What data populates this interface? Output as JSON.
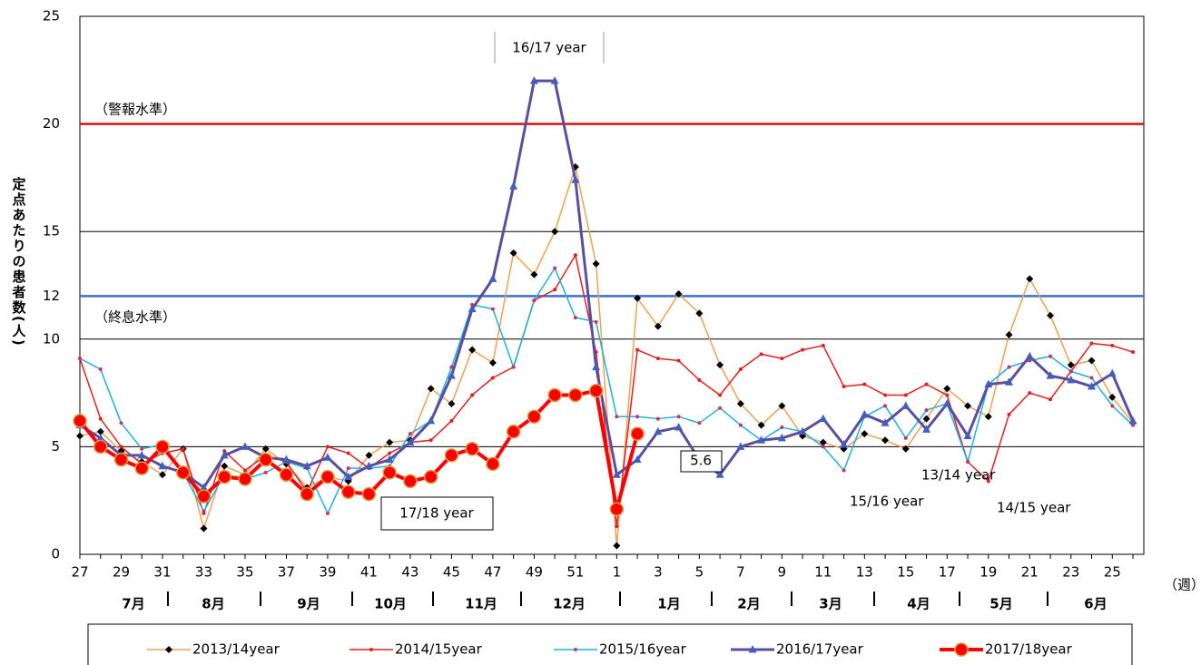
{
  "chart_data": {
    "type": "line",
    "y_axis_label": "定点あたりの患者数(人)",
    "x_axis_unit": "（週）",
    "categories": [
      "27",
      null,
      "29",
      null,
      "31",
      null,
      "33",
      null,
      "35",
      null,
      "37",
      null,
      "39",
      null,
      "41",
      null,
      "43",
      null,
      "45",
      null,
      "47",
      null,
      "49",
      null,
      "51",
      null,
      "1",
      null,
      "3",
      null,
      "5",
      null,
      "7",
      null,
      "9",
      null,
      "11",
      null,
      "13",
      null,
      "15",
      null,
      "17",
      null,
      "19",
      null,
      "21",
      null,
      "23",
      null,
      "25",
      null
    ],
    "month_labels": [
      "7月",
      "8月",
      "9月",
      "10月",
      "11月",
      "12月",
      "1月",
      "2月",
      "3月",
      "4月",
      "5月",
      "6月"
    ],
    "ylim": [
      0,
      25
    ],
    "yticks": [
      0,
      5,
      10,
      12,
      15,
      20,
      25
    ],
    "grid": true,
    "reference_lines": [
      {
        "value": 20,
        "label": "（警報水準）",
        "color": "#e01010"
      },
      {
        "value": 12,
        "label": "（終息水準）",
        "color": "#3a6fd8"
      }
    ],
    "annotations": [
      "16/17 year",
      "17/18 year",
      "5.6",
      "13/14 year",
      "15/16 year",
      "14/15 year"
    ],
    "series": [
      {
        "name": "2013/14year",
        "color": "#f0a050",
        "marker": "diamond",
        "marker_color": "#000000",
        "width": 1.5,
        "values": [
          5.5,
          5.7,
          4.8,
          4.3,
          3.7,
          4.9,
          1.2,
          4.1,
          3.7,
          4.9,
          4.2,
          3.1,
          3.6,
          3.4,
          4.6,
          5.2,
          5.3,
          7.7,
          7.0,
          9.5,
          8.9,
          14.0,
          13.0,
          15.0,
          18.0,
          13.5,
          0.4,
          11.9,
          10.6,
          12.1,
          11.2,
          8.8,
          7.0,
          6.0,
          6.9,
          5.5,
          5.2,
          4.9,
          5.6,
          5.3,
          4.9,
          6.3,
          7.7,
          6.9,
          6.4,
          10.2,
          12.8,
          11.1,
          8.8,
          9.0,
          7.3,
          6.1
        ]
      },
      {
        "name": "2014/15year",
        "color": "#e02020",
        "marker": "dot",
        "marker_color": "#e02020",
        "width": 1.5,
        "values": [
          9.1,
          6.3,
          5.0,
          4.2,
          4.7,
          4.9,
          1.9,
          4.8,
          3.9,
          4.6,
          4.3,
          2.9,
          5.0,
          4.7,
          4.0,
          4.7,
          5.2,
          5.3,
          6.2,
          7.4,
          8.2,
          8.7,
          11.8,
          12.3,
          13.9,
          9.4,
          1.3,
          9.5,
          9.1,
          9.0,
          8.1,
          7.4,
          8.6,
          9.3,
          9.1,
          9.5,
          9.7,
          7.8,
          7.9,
          7.4,
          7.4,
          7.9,
          7.4,
          4.3,
          3.4,
          6.5,
          7.5,
          7.2,
          8.5,
          9.8,
          9.7,
          9.4
        ]
      },
      {
        "name": "2015/16year",
        "color": "#20b0e0",
        "marker": "dot",
        "marker_color": "#d03060",
        "width": 1.5,
        "values": [
          9.1,
          8.6,
          6.1,
          4.9,
          5.1,
          3.8,
          2.0,
          3.7,
          3.5,
          3.8,
          4.3,
          4.0,
          1.9,
          4.0,
          4.0,
          4.1,
          5.6,
          6.2,
          8.7,
          11.6,
          11.4,
          8.7,
          11.8,
          13.3,
          11.0,
          10.8,
          6.4,
          6.4,
          6.3,
          6.4,
          6.1,
          6.8,
          6.0,
          5.3,
          5.9,
          5.7,
          5.0,
          3.9,
          6.4,
          6.9,
          5.4,
          6.7,
          7.0,
          4.3,
          7.9,
          8.7,
          9.0,
          9.2,
          8.5,
          8.2,
          6.9,
          6.0
        ]
      },
      {
        "name": "2016/17year",
        "color": "#5c4e9c",
        "marker": "triangle",
        "marker_color": "#4060c0",
        "width": 3,
        "values": [
          6.0,
          5.4,
          4.6,
          4.6,
          4.1,
          3.8,
          3.1,
          4.6,
          5.0,
          4.5,
          4.4,
          4.1,
          4.5,
          3.6,
          4.1,
          4.4,
          5.2,
          6.2,
          8.3,
          11.4,
          12.8,
          17.1,
          22.0,
          22.0,
          17.4,
          8.7,
          3.7,
          4.4,
          5.7,
          5.9,
          4.4,
          3.7,
          5.0,
          5.3,
          5.4,
          5.7,
          6.3,
          5.1,
          6.5,
          6.1,
          6.9,
          5.8,
          7.0,
          5.5,
          7.9,
          8.0,
          9.2,
          8.3,
          8.1,
          7.8,
          8.4,
          6.2
        ]
      },
      {
        "name": "2017/18year",
        "color": "#ff0000",
        "marker": "circle",
        "marker_color": "#ff0000",
        "width": 4,
        "values": [
          6.2,
          5.0,
          4.4,
          4.0,
          5.0,
          3.8,
          2.7,
          3.6,
          3.5,
          4.4,
          3.7,
          2.8,
          3.6,
          2.9,
          2.8,
          3.8,
          3.4,
          3.6,
          4.6,
          4.9,
          4.2,
          5.7,
          6.4,
          7.4,
          7.4,
          7.6,
          2.1,
          5.6,
          null,
          null,
          null,
          null,
          null,
          null,
          null,
          null,
          null,
          null,
          null,
          null,
          null,
          null,
          null,
          null,
          null,
          null,
          null,
          null,
          null,
          null,
          null,
          null
        ]
      }
    ]
  }
}
